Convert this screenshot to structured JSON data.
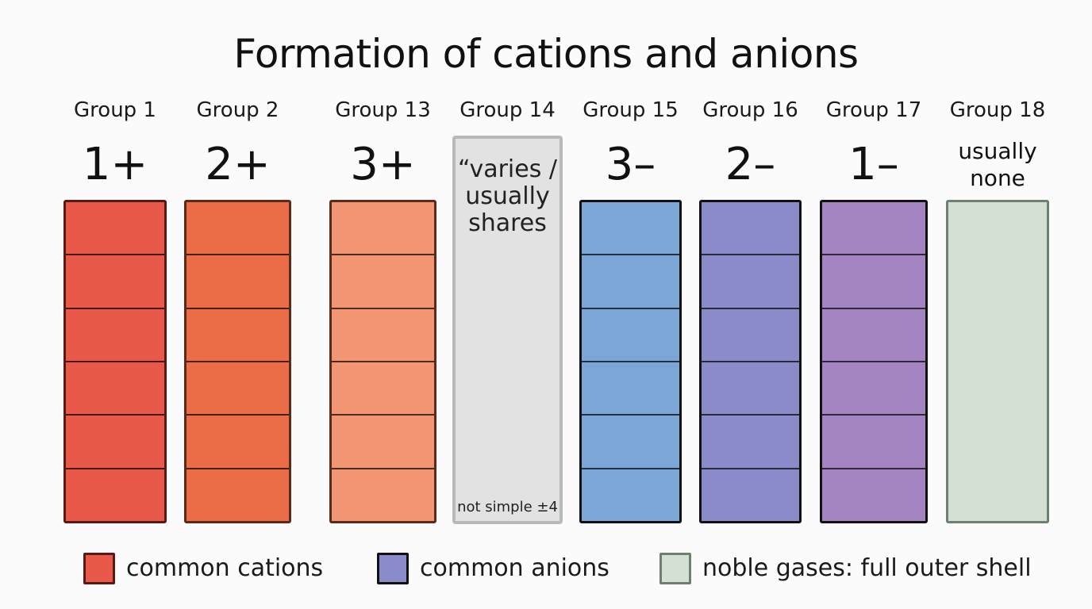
{
  "title": "Formation of cations and anions",
  "groups": [
    {
      "label": "Group 1",
      "charge": "1+",
      "fill": "#e8594a",
      "border": "#5a1a14"
    },
    {
      "label": "Group 2",
      "charge": "2+",
      "fill": "#ea6d48",
      "border": "#5a2a1a"
    },
    {
      "label": "Group 13",
      "charge": "3+",
      "fill": "#f29573",
      "border": "#5a2a1a"
    },
    {
      "label": "Group 14",
      "charge": "“varies / usually shares",
      "note": "not simple ±4",
      "fill": "#e2e2e2",
      "border": "#b9b9b9"
    },
    {
      "label": "Group 15",
      "charge": "3–",
      "fill": "#7ba6d6",
      "border": "#111111"
    },
    {
      "label": "Group 16",
      "charge": "2–",
      "fill": "#8a8cca",
      "border": "#111111"
    },
    {
      "label": "Group 17",
      "charge": "1–",
      "fill": "#a485c1",
      "border": "#111111"
    },
    {
      "label": "Group 18",
      "charge": "usually none",
      "fill": "#d4e0d4",
      "border": "#6e7f72"
    }
  ],
  "legend": [
    {
      "label": "common cations",
      "color": "#e8594a"
    },
    {
      "label": "common anions",
      "color": "#8a8cca"
    },
    {
      "label": "noble gases: full outer shell",
      "color": "#d4e0d4"
    }
  ]
}
